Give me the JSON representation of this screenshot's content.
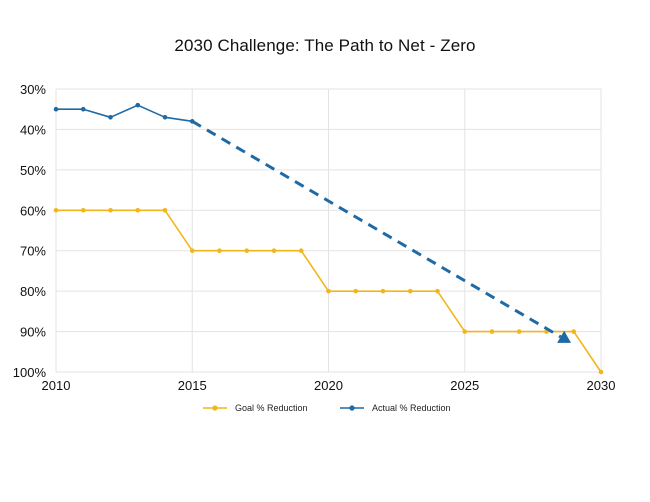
{
  "chart_data": {
    "type": "line",
    "title": "2030 Challenge: The Path to Net - Zero",
    "xlabel": "",
    "ylabel": "",
    "x_tick_labels": [
      "2010",
      "2015",
      "2020",
      "2025",
      "2030"
    ],
    "y_tick_labels": [
      "30%",
      "40%",
      "50%",
      "60%",
      "70%",
      "80%",
      "90%",
      "100%"
    ],
    "xlim": [
      2010,
      2030
    ],
    "ylim": [
      30,
      100
    ],
    "y_axis_inverted": true,
    "grid": true,
    "legend_position": "bottom",
    "series": [
      {
        "name": "Goal % Reduction",
        "color": "#f2b61c",
        "marker": "circle",
        "points": [
          [
            2010,
            60
          ],
          [
            2011,
            60
          ],
          [
            2012,
            60
          ],
          [
            2013,
            60
          ],
          [
            2014,
            60
          ],
          [
            2015,
            70
          ],
          [
            2016,
            70
          ],
          [
            2017,
            70
          ],
          [
            2018,
            70
          ],
          [
            2019,
            70
          ],
          [
            2020,
            80
          ],
          [
            2021,
            80
          ],
          [
            2022,
            80
          ],
          [
            2023,
            80
          ],
          [
            2024,
            80
          ],
          [
            2025,
            90
          ],
          [
            2026,
            90
          ],
          [
            2027,
            90
          ],
          [
            2028,
            90
          ],
          [
            2029,
            90
          ],
          [
            2030,
            100
          ]
        ]
      },
      {
        "name": "Actual % Reduction",
        "color": "#1f6aa5",
        "marker": "circle",
        "points": [
          [
            2010,
            35
          ],
          [
            2011,
            35
          ],
          [
            2012,
            37
          ],
          [
            2013,
            34
          ],
          [
            2014,
            37
          ],
          [
            2015,
            38
          ]
        ]
      }
    ],
    "trend_arrow": {
      "color": "#1f6aa5",
      "style": "dashed",
      "from": [
        2015,
        38
      ],
      "to": [
        2028.9,
        92.8
      ]
    }
  }
}
